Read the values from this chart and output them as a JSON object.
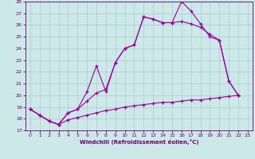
{
  "xlabel": "Windchill (Refroidissement éolien,°C)",
  "background_color": "#cce8e8",
  "grid_color": "#aacccc",
  "line_color": "#990099",
  "xlim_min": -0.5,
  "xlim_max": 23.5,
  "ylim_min": 17,
  "ylim_max": 28,
  "yticks": [
    17,
    18,
    19,
    20,
    21,
    22,
    23,
    24,
    25,
    26,
    27,
    28
  ],
  "xticks": [
    0,
    1,
    2,
    3,
    4,
    5,
    6,
    7,
    8,
    9,
    10,
    11,
    12,
    13,
    14,
    15,
    16,
    17,
    18,
    19,
    20,
    21,
    22,
    23
  ],
  "line1_x": [
    0,
    1,
    2,
    3,
    4,
    5,
    6,
    7,
    8,
    9,
    10,
    11,
    12,
    13,
    14,
    15,
    16,
    17,
    18,
    19,
    20,
    21,
    22
  ],
  "line1_y": [
    18.8,
    18.3,
    17.8,
    17.5,
    17.9,
    18.1,
    18.3,
    18.5,
    18.7,
    18.8,
    19.0,
    19.1,
    19.2,
    19.3,
    19.4,
    19.4,
    19.5,
    19.6,
    19.6,
    19.7,
    19.8,
    19.9,
    20.0
  ],
  "line2_x": [
    0,
    1,
    2,
    3,
    4,
    5,
    6,
    7,
    8,
    9,
    10,
    11,
    12,
    13,
    14,
    15,
    16,
    17,
    18,
    19,
    20,
    21,
    22
  ],
  "line2_y": [
    18.8,
    18.3,
    17.8,
    17.5,
    18.5,
    18.8,
    19.5,
    20.2,
    20.5,
    22.8,
    24.0,
    24.3,
    26.7,
    26.5,
    26.2,
    26.2,
    28.0,
    27.2,
    26.1,
    25.0,
    24.7,
    21.2,
    20.0
  ],
  "line3_x": [
    0,
    1,
    2,
    3,
    4,
    5,
    6,
    7,
    8,
    9,
    10,
    11,
    12,
    13,
    14,
    15,
    16,
    17,
    18,
    19,
    20,
    21,
    22
  ],
  "line3_y": [
    18.8,
    18.3,
    17.8,
    17.5,
    18.5,
    18.8,
    20.3,
    22.5,
    20.3,
    22.8,
    24.0,
    24.3,
    26.7,
    26.5,
    26.2,
    26.2,
    26.3,
    26.1,
    25.8,
    25.2,
    24.7,
    21.2,
    20.0
  ]
}
